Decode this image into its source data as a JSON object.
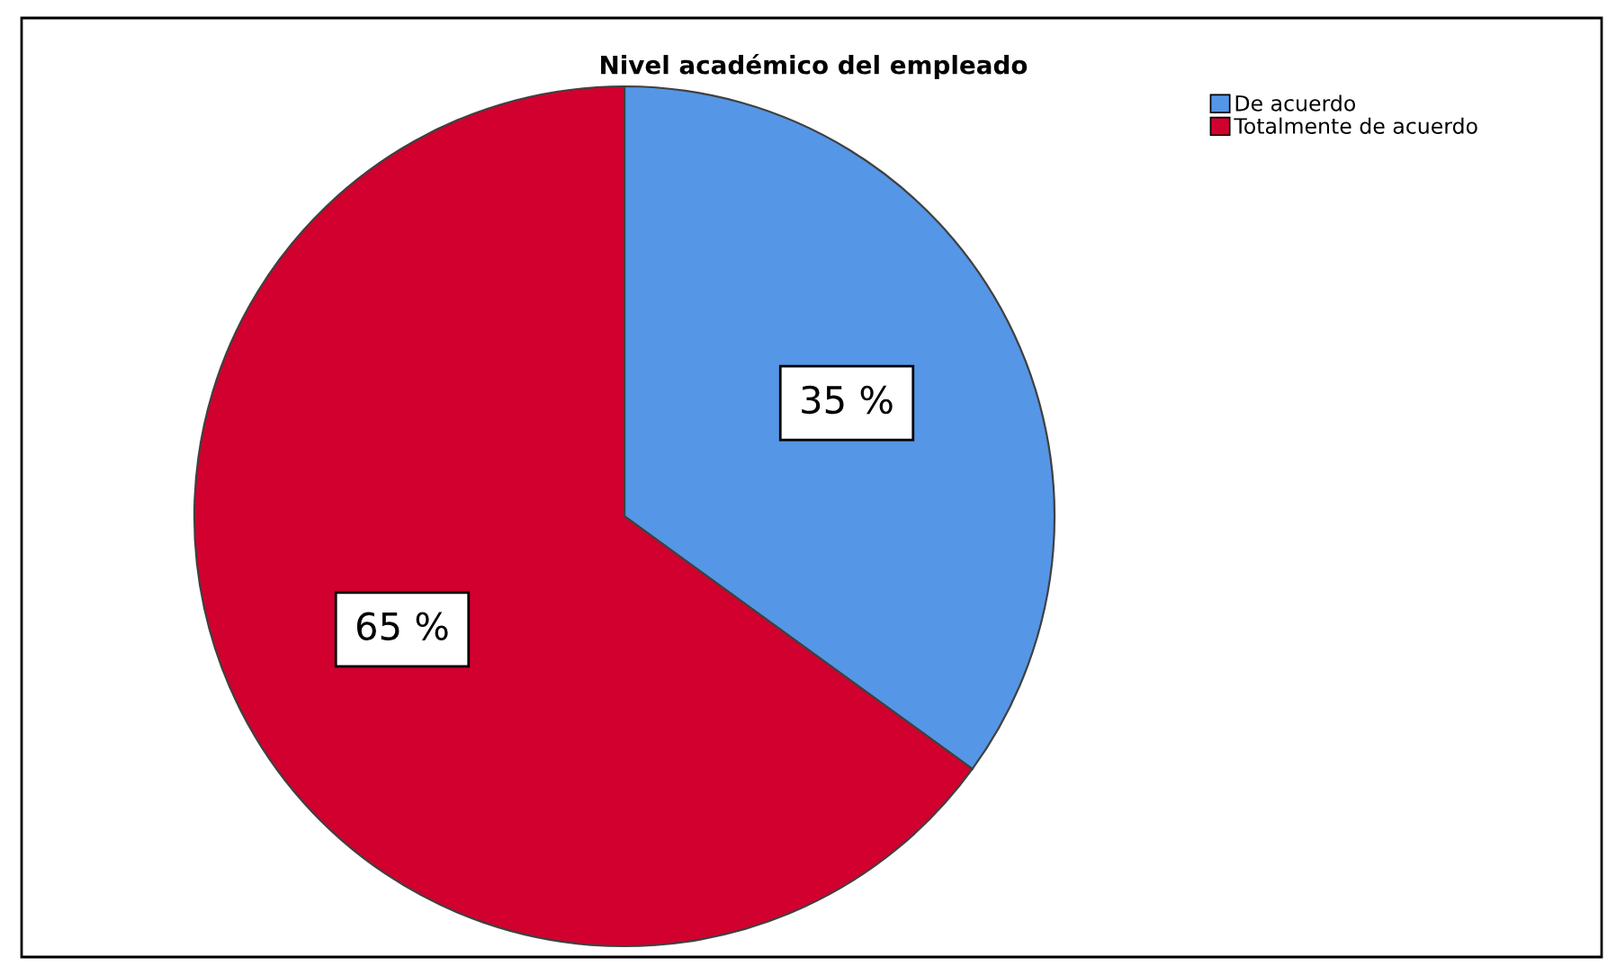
{
  "chart_data": {
    "type": "pie",
    "title": "Nivel académico del empleado",
    "categories": [
      "De acuerdo",
      "Totalmente de acuerdo"
    ],
    "values": [
      35,
      65
    ],
    "colors": [
      "#5596e6",
      "#d1002e"
    ],
    "value_labels": [
      "35 %",
      "65 %"
    ],
    "legend": "top right"
  }
}
